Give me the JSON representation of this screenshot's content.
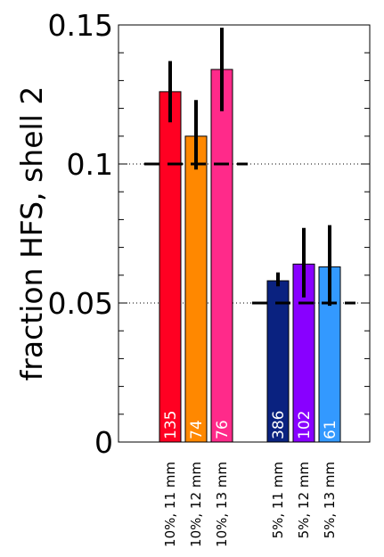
{
  "chart_data": {
    "type": "bar",
    "ylabel": "fraction HFS, shell 2",
    "xlabel": "",
    "title": "",
    "ylim": [
      0,
      0.15
    ],
    "yticks": [
      {
        "value": 0,
        "label": "0"
      },
      {
        "value": 0.05,
        "label": "0.05"
      },
      {
        "value": 0.1,
        "label": "0.1"
      },
      {
        "value": 0.15,
        "label": "0.15"
      }
    ],
    "minor_tick_step": 0.01,
    "grid": false,
    "reference_lines": [
      {
        "value": 0.1,
        "style": "dotted"
      },
      {
        "value": 0.05,
        "style": "dotted"
      }
    ],
    "groups": [
      {
        "expected_value": 0.1,
        "bars": [
          {
            "category": "10%, 11 mm",
            "value": 0.126,
            "error_low": 0.115,
            "error_high": 0.137,
            "count": "135",
            "color": "#ff0022"
          },
          {
            "category": "10%, 12 mm",
            "value": 0.11,
            "error_low": 0.098,
            "error_high": 0.123,
            "count": "74",
            "color": "#ff8800"
          },
          {
            "category": "10%, 13 mm",
            "value": 0.134,
            "error_low": 0.119,
            "error_high": 0.149,
            "count": "76",
            "color": "#ff2a8a"
          }
        ]
      },
      {
        "expected_value": 0.05,
        "bars": [
          {
            "category": "5%,   11 mm",
            "value": 0.058,
            "error_low": 0.056,
            "error_high": 0.061,
            "count": "386",
            "color": "#0a2280"
          },
          {
            "category": "5%,   12 mm",
            "value": 0.064,
            "error_low": 0.052,
            "error_high": 0.077,
            "count": "102",
            "color": "#8800ff"
          },
          {
            "category": "5%,   13 mm",
            "value": 0.063,
            "error_low": 0.049,
            "error_high": 0.078,
            "count": "61",
            "color": "#3399ff"
          }
        ]
      }
    ]
  }
}
